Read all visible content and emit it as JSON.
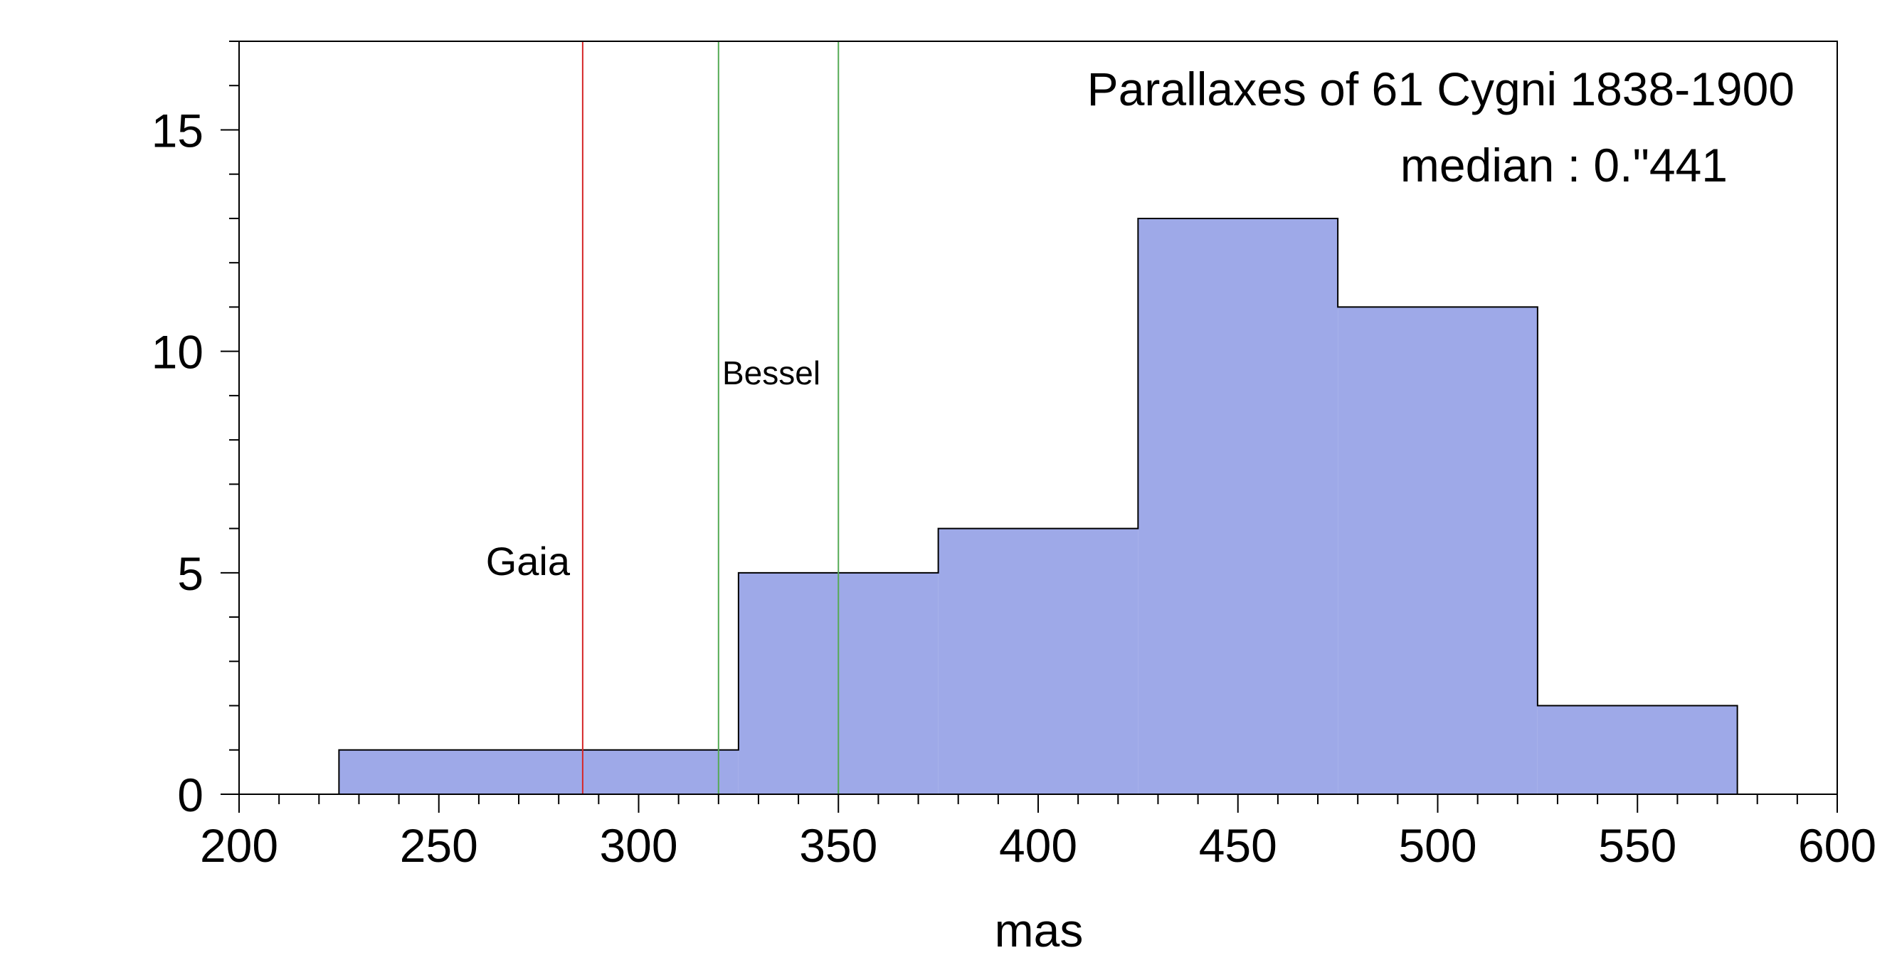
{
  "chart_data": {
    "type": "histogram",
    "title": "Parallaxes of 61 Cygni 1838-1900",
    "subtitle": "median : 0.\"441",
    "xlabel": "mas",
    "ylabel": "",
    "xlim": [
      200,
      600
    ],
    "ylim": [
      0,
      17
    ],
    "x_ticks": [
      200,
      250,
      300,
      350,
      400,
      450,
      500,
      550,
      600
    ],
    "y_ticks": [
      0,
      5,
      10,
      15
    ],
    "x_minor_step": 10,
    "y_minor_step": 1,
    "grid": false,
    "bins": [
      {
        "start": 225,
        "end": 325,
        "count": 1
      },
      {
        "start": 325,
        "end": 375,
        "count": 5
      },
      {
        "start": 375,
        "end": 425,
        "count": 6
      },
      {
        "start": 425,
        "end": 475,
        "count": 13
      },
      {
        "start": 475,
        "end": 525,
        "count": 11
      },
      {
        "start": 525,
        "end": 575,
        "count": 2
      }
    ],
    "reference_lines": [
      {
        "x": 286,
        "color": "#d62728"
      },
      {
        "x": 320,
        "color": "#55aa55"
      },
      {
        "x": 350,
        "color": "#55aa55"
      }
    ],
    "annotations": [
      {
        "text": "Gaia",
        "x": 286
      },
      {
        "text": "Bessel",
        "x": 320
      }
    ],
    "colors": {
      "bar_fill": "#9ea9e8",
      "bar_edge": "#000000",
      "axis": "#000000"
    }
  }
}
